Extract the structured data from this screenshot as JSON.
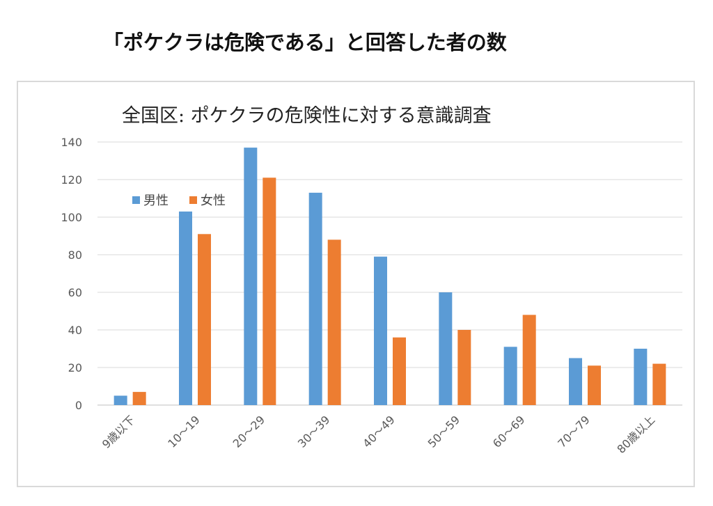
{
  "page": {
    "title": "「ポケクラは危険である」と回答した者の数"
  },
  "chart_data": {
    "type": "bar",
    "title": "全国区: ポケクラの危険性に対する意識調査",
    "categories": [
      "9歳以下",
      "10～19",
      "20～29",
      "30～39",
      "40～49",
      "50～59",
      "60～69",
      "70～79",
      "80歳以上"
    ],
    "series": [
      {
        "name": "男性",
        "color": "#5b9bd5",
        "values": [
          5,
          103,
          137,
          113,
          79,
          60,
          31,
          25,
          30
        ]
      },
      {
        "name": "女性",
        "color": "#ed7d31",
        "values": [
          7,
          91,
          121,
          88,
          36,
          40,
          48,
          21,
          22
        ]
      }
    ],
    "y_ticks": [
      "0",
      "20",
      "40",
      "60",
      "80",
      "100",
      "120",
      "140"
    ],
    "ylim": [
      0,
      140
    ],
    "xlabel": "",
    "ylabel": "",
    "grid": true,
    "legend": "top-left"
  }
}
